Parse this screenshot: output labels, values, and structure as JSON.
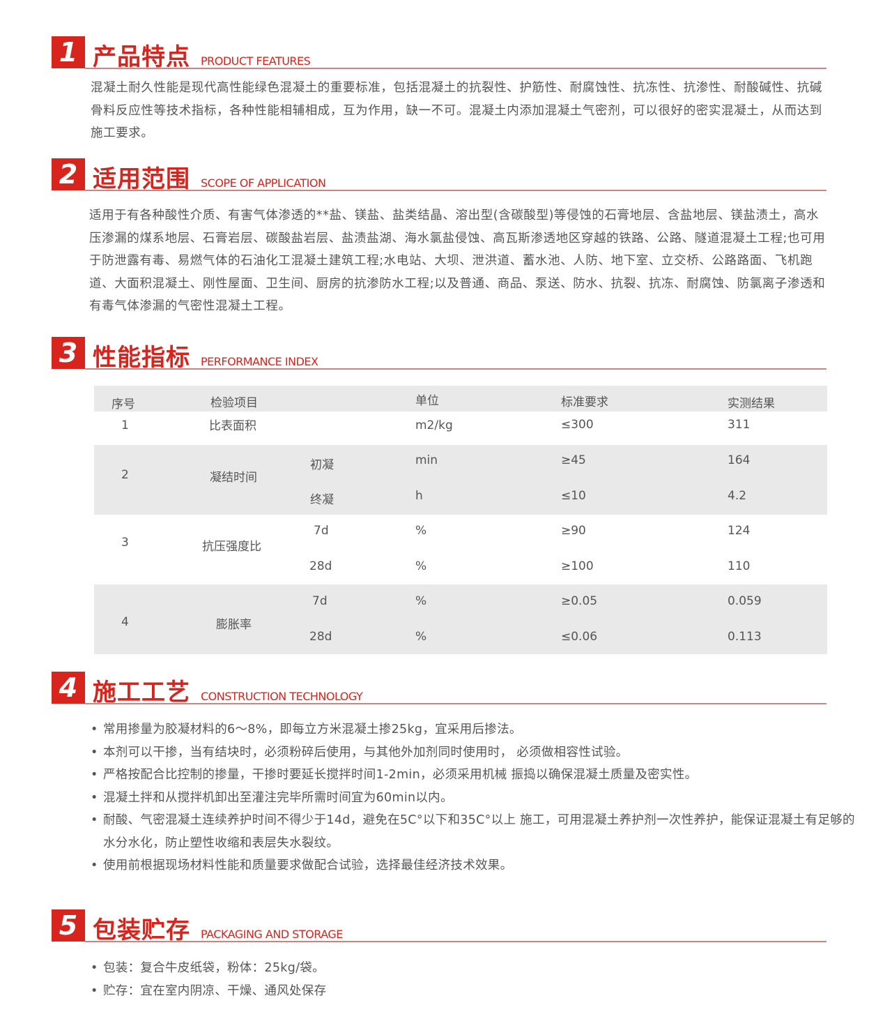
{
  "accent_color": "#d7241d",
  "sections": [
    {
      "num": "1",
      "title": "产品特点",
      "subtitle": "PRODUCT FEATURES",
      "text": "混凝土耐久性能是现代高性能绿色混凝土的重要标准，包括混凝土的抗裂性、护筋性、耐腐蚀性、抗冻性、抗渗性、耐酸碱性、抗碱骨料反应性等技术指标，各种性能相辅相成，互为作用，缺一不可。混凝土内添加混凝土气密剂，可以很好的密实混凝土，从而达到施工要求。"
    },
    {
      "num": "2",
      "title": "适用范围",
      "subtitle": "SCOPE OF APPLICATION",
      "text": "适用于有各种酸性介质、有害气体渗透的**盐、镁盐、盐类结晶、溶出型(含碳酸型)等侵蚀的石膏地层、含盐地层、镁盐渍土，高水压渗漏的煤系地层、石膏岩层、碳酸盐岩层、盐渍盐湖、海水氯盐侵蚀、高瓦斯渗透地区穿越的铁路、公路、隧道混凝土工程;也可用于防泄露有毒、易燃气体的石油化工混凝土建筑工程;水电站、大坝、泄洪道、蓄水池、人防、地下室、立交桥、公路路面、飞机跑道、大面积混凝土、刚性屋面、卫生间、厨房的抗渗防水工程;以及普通、商品、泵送、防水、抗裂、抗冻、耐腐蚀、防氯离子渗透和有毒气体渗漏的气密性混凝土工程。"
    },
    {
      "num": "3",
      "title": "性能指标",
      "subtitle": "PERFORMANCE INDEX"
    },
    {
      "num": "4",
      "title": "施工工艺",
      "subtitle": "CONSTRUCTION TECHNOLOGY",
      "items": [
        "常用掺量为胶凝材料的6～8%，即每立方米混凝土掺25kg，宜采用后掺法。",
        "本剂可以干掺，当有结块时，必须粉碎后使用，与其他外加剂同时使用时， 必须做相容性试验。",
        "严格按配合比控制的掺量，干掺时要延长搅拌时间1-2min，必须采用机械 振捣以确保混凝土质量及密实性。",
        "混凝土拌和从搅拌机卸出至灌注完毕所需时间宜为60min以内。",
        "耐酸、气密混凝土连续养护时间不得少于14d，避免在5C°以下和35C°以上 施工，可用混凝土养护剂一次性养护，能保证混凝土有足够的水分水化，防止塑性收缩和表层失水裂纹。",
        "使用前根据现场材料性能和质量要求做配合试验，选择最佳经济技术效果。"
      ]
    },
    {
      "num": "5",
      "title": "包装贮存",
      "subtitle": "PACKAGING AND STORAGE",
      "items": [
        "包装：复合牛皮纸袋，粉体：25kg/袋。",
        "贮存：宜在室内阴凉、干燥、通风处保存"
      ]
    }
  ],
  "table": {
    "headers": [
      "序号",
      "检验项目",
      "单位",
      "标准要求",
      "实测结果"
    ],
    "rows": [
      {
        "no": "1",
        "item": "比表面积",
        "subs": [
          {
            "sub": "",
            "unit": "m2/kg",
            "std": "≤300",
            "result": "311"
          }
        ]
      },
      {
        "no": "2",
        "item": "凝结时间",
        "subs": [
          {
            "sub": "初凝",
            "unit": "min",
            "std": "≥45",
            "result": "164"
          },
          {
            "sub": "终凝",
            "unit": "h",
            "std": "≤10",
            "result": "4.2"
          }
        ]
      },
      {
        "no": "3",
        "item": "抗压强度比",
        "subs": [
          {
            "sub": "7d",
            "unit": "%",
            "std": "≥90",
            "result": "124"
          },
          {
            "sub": "28d",
            "unit": "%",
            "std": "≥100",
            "result": "110"
          }
        ]
      },
      {
        "no": "4",
        "item": "膨胀率",
        "subs": [
          {
            "sub": "7d",
            "unit": "%",
            "std": "≥0.05",
            "result": "0.059"
          },
          {
            "sub": "28d",
            "unit": "%",
            "std": "≤0.06",
            "result": "0.113"
          }
        ]
      }
    ]
  }
}
